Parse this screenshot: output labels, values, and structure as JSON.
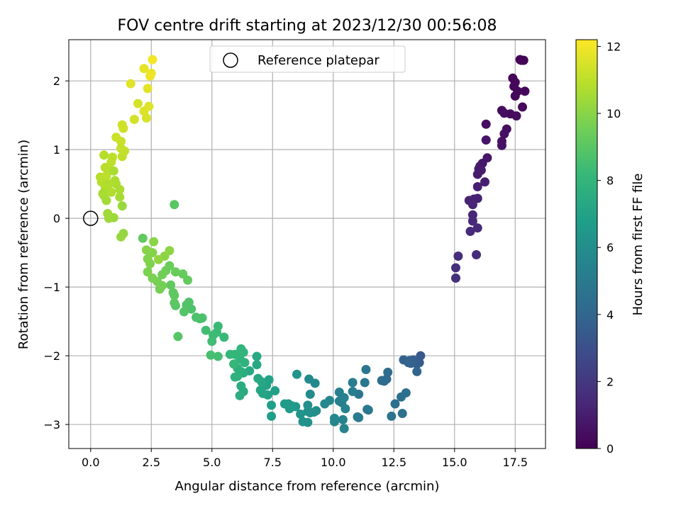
{
  "chart_data": {
    "type": "scatter",
    "title": "FOV centre drift starting at 2023/12/30 00:56:08",
    "xlabel": "Angular distance from reference (arcmin)",
    "ylabel": "Rotation from reference (arcmin)",
    "xlim": [
      -0.9,
      18.75
    ],
    "ylim": [
      -3.35,
      2.6
    ],
    "x_ticks": [
      0.0,
      2.5,
      5.0,
      7.5,
      10.0,
      12.5,
      15.0,
      17.5
    ],
    "x_tick_labels": [
      "0.0",
      "2.5",
      "5.0",
      "7.5",
      "10.0",
      "12.5",
      "15.0",
      "17.5"
    ],
    "y_ticks": [
      -3,
      -2,
      -1,
      0,
      1,
      2
    ],
    "y_tick_labels": [
      "−3",
      "−2",
      "−1",
      "0",
      "1",
      "2"
    ],
    "grid": true,
    "legend": {
      "placement": "top-center",
      "entries": [
        "Reference platepar"
      ]
    },
    "reference_point": {
      "x": 0.0,
      "y": 0.0,
      "label": "Reference platepar"
    },
    "colorbar": {
      "label": "Hours from first FF file",
      "colormap": "viridis",
      "range": [
        0,
        12.2
      ],
      "ticks": [
        0,
        2,
        4,
        6,
        8,
        10,
        12
      ],
      "tick_labels": [
        "0",
        "2",
        "4",
        "6",
        "8",
        "10",
        "12"
      ]
    },
    "colormap_stops": [
      "#440154",
      "#482878",
      "#3e4989",
      "#31688e",
      "#26828e",
      "#1f9e89",
      "#35b779",
      "#6ece58",
      "#b5de2b",
      "#fde725"
    ],
    "points": [
      [
        17.75,
        2.3,
        0.05
      ],
      [
        17.85,
        2.3,
        0.08
      ],
      [
        17.7,
        2.31,
        0.1
      ],
      [
        17.4,
        2.04,
        0.15
      ],
      [
        17.5,
        1.98,
        0.18
      ],
      [
        17.45,
        1.92,
        0.2
      ],
      [
        17.6,
        1.85,
        0.22
      ],
      [
        17.9,
        1.85,
        0.25
      ],
      [
        17.5,
        1.78,
        0.28
      ],
      [
        17.8,
        1.62,
        0.3
      ],
      [
        17.3,
        1.52,
        0.32
      ],
      [
        17.55,
        1.49,
        0.35
      ],
      [
        16.95,
        1.57,
        0.38
      ],
      [
        17.05,
        1.53,
        0.4
      ],
      [
        16.3,
        1.37,
        0.45
      ],
      [
        17.15,
        1.3,
        0.5
      ],
      [
        17.05,
        1.23,
        0.55
      ],
      [
        16.95,
        1.12,
        0.58
      ],
      [
        16.95,
        1.06,
        0.62
      ],
      [
        16.3,
        1.14,
        0.66
      ],
      [
        16.35,
        0.88,
        0.72
      ],
      [
        16.15,
        0.8,
        0.78
      ],
      [
        16.05,
        0.76,
        0.82
      ],
      [
        16.0,
        0.72,
        0.86
      ],
      [
        16.1,
        0.7,
        0.9
      ],
      [
        15.95,
        0.64,
        0.95
      ],
      [
        16.25,
        0.53,
        1.0
      ],
      [
        15.95,
        0.46,
        1.05
      ],
      [
        15.8,
        0.28,
        1.1
      ],
      [
        15.95,
        0.29,
        1.15
      ],
      [
        15.6,
        0.26,
        1.2
      ],
      [
        15.75,
        0.2,
        1.25
      ],
      [
        15.75,
        0.05,
        1.3
      ],
      [
        15.75,
        -0.04,
        1.35
      ],
      [
        15.95,
        -0.14,
        1.4
      ],
      [
        15.65,
        -0.19,
        1.45
      ],
      [
        15.9,
        -0.53,
        1.5
      ],
      [
        15.15,
        -0.55,
        1.6
      ],
      [
        15.05,
        -0.72,
        1.65
      ],
      [
        15.05,
        -0.87,
        1.7
      ],
      [
        13.6,
        -2.0,
        3.4
      ],
      [
        13.55,
        -2.1,
        3.5
      ],
      [
        13.45,
        -2.12,
        3.6
      ],
      [
        13.3,
        -2.06,
        3.7
      ],
      [
        13.2,
        -2.11,
        3.75
      ],
      [
        13.15,
        -2.07,
        3.8
      ],
      [
        12.9,
        -2.06,
        3.85
      ],
      [
        13.1,
        -2.1,
        3.9
      ],
      [
        13.45,
        -2.23,
        3.95
      ],
      [
        12.2,
        -2.34,
        4.2
      ],
      [
        12.25,
        -2.24,
        4.25
      ],
      [
        12.1,
        -2.37,
        4.3
      ],
      [
        12.0,
        -2.36,
        4.35
      ],
      [
        12.55,
        -2.7,
        4.4
      ],
      [
        13.0,
        -2.54,
        4.45
      ],
      [
        12.8,
        -2.6,
        4.5
      ],
      [
        12.85,
        -2.84,
        4.55
      ],
      [
        12.4,
        -2.88,
        4.6
      ],
      [
        11.35,
        -2.2,
        4.75
      ],
      [
        11.05,
        -2.56,
        4.8
      ],
      [
        11.3,
        -2.39,
        4.85
      ],
      [
        11.4,
        -2.78,
        4.9
      ],
      [
        11.45,
        -2.79,
        4.95
      ],
      [
        11.05,
        -2.9,
        5.0
      ],
      [
        11.0,
        -2.89,
        5.05
      ],
      [
        10.8,
        -2.39,
        5.1
      ],
      [
        10.8,
        -2.52,
        5.15
      ],
      [
        10.35,
        -2.68,
        5.2
      ],
      [
        10.25,
        -2.66,
        5.25
      ],
      [
        10.25,
        -2.53,
        5.3
      ],
      [
        10.45,
        -2.61,
        5.35
      ],
      [
        10.5,
        -2.77,
        5.4
      ],
      [
        10.4,
        -2.93,
        5.45
      ],
      [
        10.45,
        -3.06,
        5.5
      ],
      [
        10.05,
        -2.96,
        5.55
      ],
      [
        10.05,
        -2.91,
        5.6
      ],
      [
        9.85,
        -2.65,
        5.65
      ],
      [
        9.65,
        -2.7,
        5.7
      ],
      [
        9.25,
        -2.4,
        5.75
      ],
      [
        9.0,
        -2.34,
        5.8
      ],
      [
        9.05,
        -2.56,
        5.85
      ],
      [
        9.2,
        -2.82,
        5.9
      ],
      [
        9.3,
        -2.8,
        5.95
      ],
      [
        9.05,
        -2.83,
        6.0
      ],
      [
        8.95,
        -2.72,
        6.05
      ],
      [
        8.95,
        -2.81,
        6.1
      ],
      [
        8.95,
        -2.97,
        6.2
      ],
      [
        8.75,
        -2.96,
        6.25
      ],
      [
        8.65,
        -2.85,
        6.3
      ],
      [
        8.5,
        -2.27,
        6.35
      ],
      [
        8.45,
        -2.74,
        6.45
      ],
      [
        8.3,
        -2.73,
        6.5
      ],
      [
        8.15,
        -2.7,
        6.55
      ],
      [
        8.2,
        -2.77,
        6.6
      ],
      [
        8.0,
        -2.7,
        6.65
      ],
      [
        7.45,
        -2.88,
        6.8
      ],
      [
        7.45,
        -2.72,
        6.85
      ],
      [
        7.6,
        -2.51,
        6.9
      ],
      [
        7.3,
        -2.57,
        6.95
      ],
      [
        7.25,
        -2.43,
        7.0
      ],
      [
        7.35,
        -2.35,
        7.05
      ],
      [
        7.1,
        -2.55,
        7.1
      ],
      [
        7.0,
        -2.5,
        7.15
      ],
      [
        7.05,
        -2.38,
        7.2
      ],
      [
        6.9,
        -2.33,
        7.25
      ],
      [
        6.85,
        -2.13,
        7.3
      ],
      [
        6.85,
        -2.01,
        7.35
      ],
      [
        6.55,
        -2.22,
        7.4
      ],
      [
        6.3,
        -2.52,
        7.45
      ],
      [
        6.2,
        -2.44,
        7.5
      ],
      [
        6.15,
        -2.58,
        7.55
      ],
      [
        6.3,
        -2.25,
        7.6
      ],
      [
        6.2,
        -2.23,
        7.65
      ],
      [
        6.05,
        -2.18,
        7.7
      ],
      [
        6.05,
        -2.3,
        7.75
      ],
      [
        5.95,
        -2.31,
        7.8
      ],
      [
        6.35,
        -2.1,
        7.85
      ],
      [
        6.15,
        -2.05,
        7.9
      ],
      [
        6.3,
        -1.95,
        7.95
      ],
      [
        6.2,
        -1.9,
        8.0
      ],
      [
        5.95,
        -1.98,
        8.05
      ],
      [
        5.75,
        -1.98,
        8.1
      ],
      [
        5.9,
        -2.12,
        8.15
      ],
      [
        5.5,
        -1.73,
        8.2
      ],
      [
        5.25,
        -1.57,
        8.25
      ],
      [
        5.2,
        -1.66,
        8.3
      ],
      [
        5.05,
        -1.7,
        8.35
      ],
      [
        5.0,
        -1.79,
        8.4
      ],
      [
        4.75,
        -1.63,
        8.45
      ],
      [
        5.25,
        -2.01,
        8.5
      ],
      [
        4.95,
        -1.99,
        8.55
      ],
      [
        4.5,
        -1.46,
        8.6
      ],
      [
        4.6,
        -1.45,
        8.65
      ],
      [
        4.35,
        -1.44,
        8.7
      ],
      [
        4.15,
        -1.32,
        8.75
      ],
      [
        4.05,
        -1.22,
        8.8
      ],
      [
        3.95,
        -1.26,
        8.85
      ],
      [
        3.85,
        -1.36,
        8.9
      ],
      [
        3.6,
        -1.72,
        8.95
      ],
      [
        3.5,
        -1.27,
        9.0
      ],
      [
        3.45,
        -1.23,
        9.05
      ],
      [
        3.45,
        -1.12,
        9.1
      ],
      [
        3.4,
        -1.08,
        9.15
      ],
      [
        3.3,
        -0.97,
        9.2
      ],
      [
        4.0,
        -0.9,
        9.25
      ],
      [
        3.8,
        -0.81,
        9.3
      ],
      [
        3.5,
        -0.78,
        9.35
      ],
      [
        3.25,
        -0.69,
        9.4
      ],
      [
        3.1,
        -0.76,
        9.45
      ],
      [
        2.95,
        -0.82,
        9.5
      ],
      [
        2.95,
        -0.98,
        9.55
      ],
      [
        2.85,
        -1.03,
        9.6
      ],
      [
        2.75,
        -0.92,
        9.65
      ],
      [
        2.55,
        -0.87,
        9.7
      ],
      [
        2.35,
        -0.78,
        9.75
      ],
      [
        2.45,
        -0.66,
        9.8
      ],
      [
        2.35,
        -0.59,
        9.85
      ],
      [
        2.55,
        -0.5,
        9.9
      ],
      [
        2.3,
        -0.46,
        9.95
      ],
      [
        2.6,
        -0.34,
        10.0
      ],
      [
        3.05,
        -0.55,
        10.05
      ],
      [
        3.25,
        -0.47,
        10.1
      ],
      [
        2.8,
        -0.6,
        10.15
      ],
      [
        2.15,
        -0.29,
        9.2
      ],
      [
        3.45,
        0.2,
        9.0
      ],
      [
        1.35,
        -0.22,
        10.2
      ],
      [
        1.25,
        -0.27,
        10.25
      ],
      [
        1.3,
        0.18,
        10.3
      ],
      [
        0.95,
        0.01,
        10.35
      ],
      [
        0.75,
        0.0,
        10.4
      ],
      [
        0.7,
        0.07,
        10.45
      ],
      [
        0.65,
        0.26,
        10.5
      ],
      [
        0.55,
        0.33,
        10.55
      ],
      [
        1.2,
        0.31,
        10.6
      ],
      [
        1.2,
        0.42,
        10.65
      ],
      [
        1.05,
        0.5,
        10.7
      ],
      [
        0.85,
        0.38,
        10.75
      ],
      [
        0.6,
        0.45,
        10.8
      ],
      [
        0.45,
        0.53,
        10.85
      ],
      [
        0.4,
        0.6,
        10.9
      ],
      [
        0.65,
        0.62,
        10.95
      ],
      [
        0.8,
        0.7,
        11.0
      ],
      [
        0.95,
        0.69,
        10.65
      ],
      [
        0.6,
        0.74,
        10.9
      ],
      [
        0.85,
        0.82,
        10.95
      ],
      [
        0.9,
        0.89,
        11.0
      ],
      [
        0.55,
        0.92,
        10.85
      ],
      [
        1.3,
        0.9,
        11.05
      ],
      [
        1.4,
        0.98,
        11.1
      ],
      [
        1.25,
        1.02,
        11.15
      ],
      [
        1.25,
        1.12,
        11.2
      ],
      [
        1.05,
        1.18,
        11.25
      ],
      [
        1.35,
        1.31,
        11.3
      ],
      [
        1.3,
        1.36,
        11.35
      ],
      [
        1.8,
        1.44,
        11.4
      ],
      [
        1.95,
        1.67,
        11.45
      ],
      [
        2.3,
        1.46,
        11.5
      ],
      [
        2.2,
        1.56,
        11.55
      ],
      [
        2.4,
        1.63,
        11.6
      ],
      [
        1.65,
        1.96,
        11.65
      ],
      [
        2.35,
        1.89,
        11.7
      ],
      [
        2.2,
        2.18,
        11.75
      ],
      [
        2.5,
        2.11,
        11.85
      ],
      [
        2.45,
        2.07,
        11.9
      ],
      [
        2.55,
        2.31,
        12.0
      ],
      [
        1.0,
        0.55,
        10.7
      ],
      [
        0.75,
        0.5,
        10.75
      ],
      [
        0.5,
        0.36,
        10.6
      ]
    ]
  }
}
